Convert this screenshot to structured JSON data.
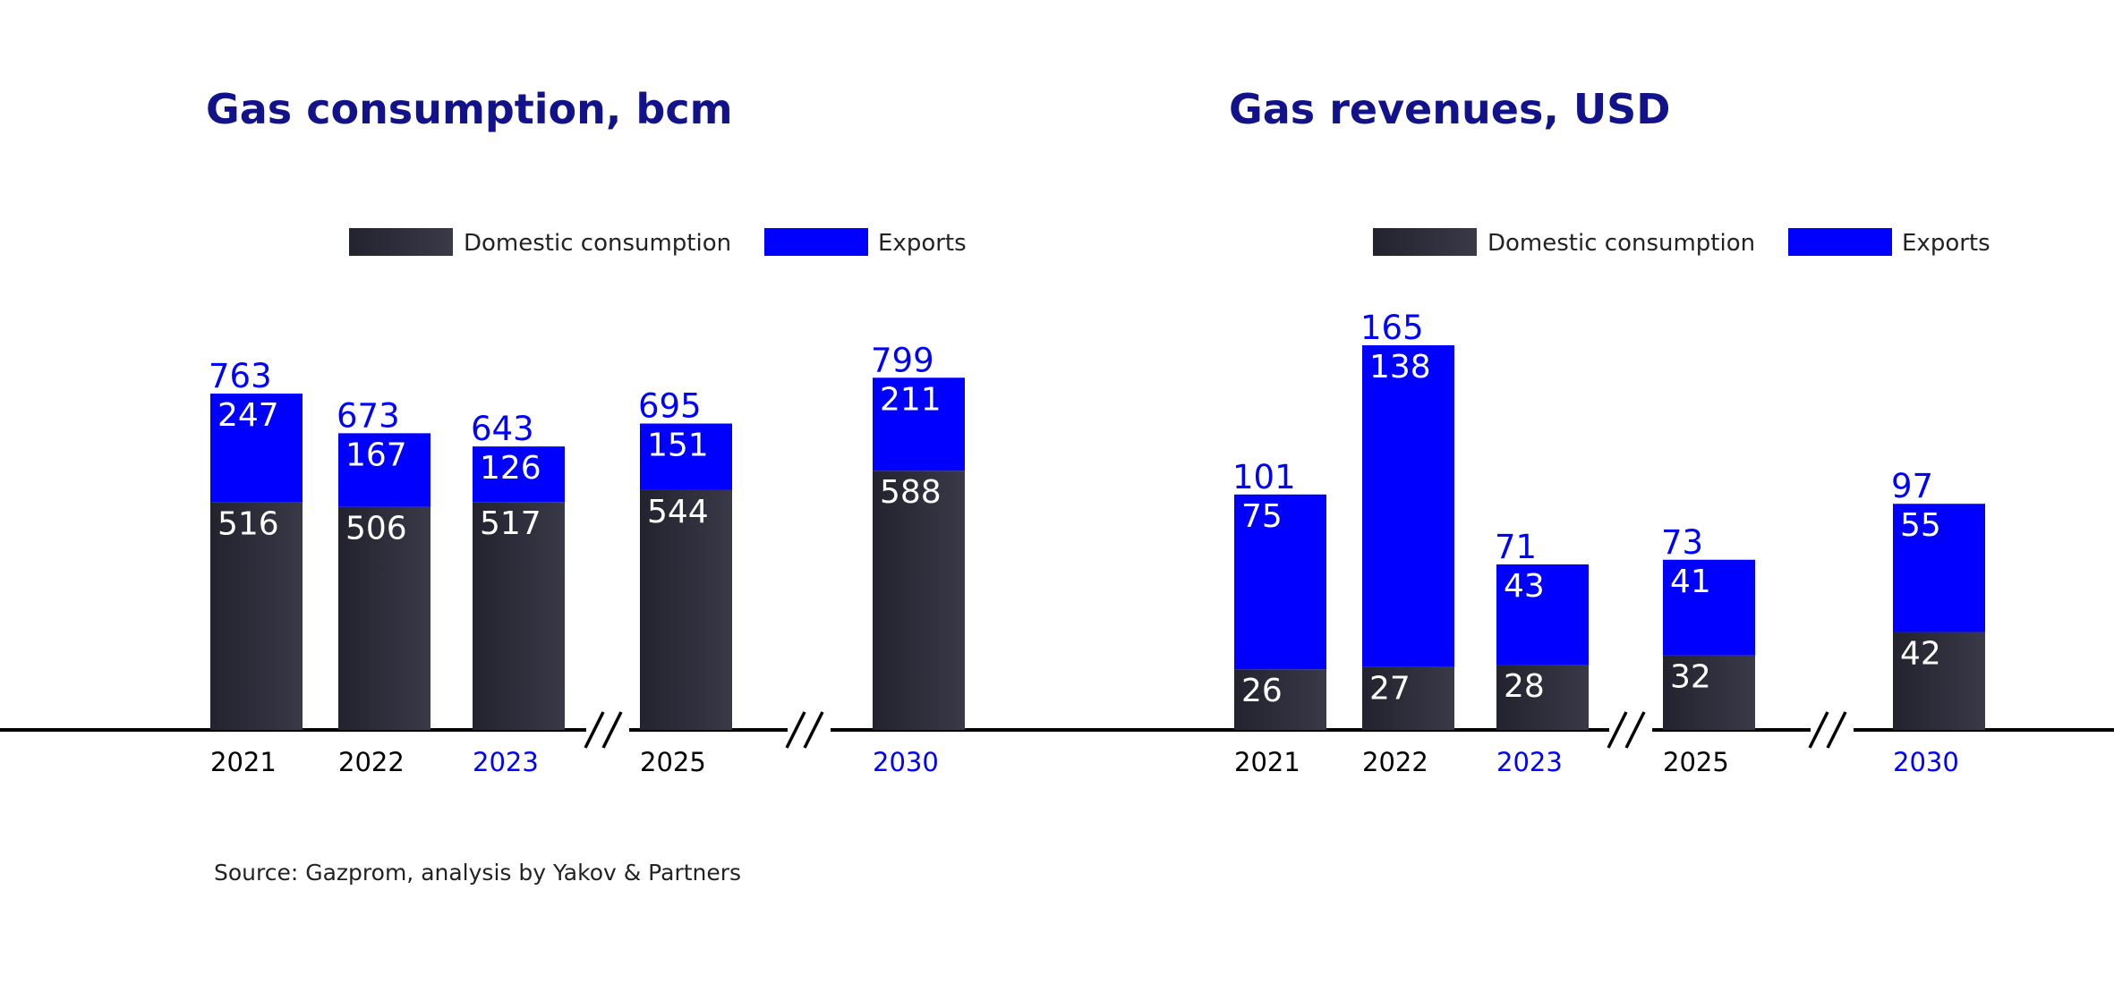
{
  "source": "Source: Gazprom, analysis by Yakov & Partners",
  "colors": {
    "title": "#12128a",
    "exports": "#0000ff",
    "domestic_dark": "#23222f",
    "domestic_light": "#3a3947",
    "highlight_year": "#0000ff",
    "year": "#000000",
    "axis": "#000000"
  },
  "chart_data": [
    {
      "type": "bar",
      "stacked": true,
      "title": "Gas consumption, bcm",
      "legend": [
        "Domestic consumption",
        "Exports"
      ],
      "legend_position": "top-center",
      "categories": [
        "2021",
        "2022",
        "2023",
        "2025",
        "2030"
      ],
      "highlighted_categories": [
        "2023",
        "2030"
      ],
      "axis_breaks_after": [
        "2023",
        "2025"
      ],
      "series": [
        {
          "name": "Domestic consumption",
          "values": [
            516,
            506,
            517,
            544,
            588
          ]
        },
        {
          "name": "Exports",
          "values": [
            247,
            167,
            126,
            151,
            211
          ]
        }
      ],
      "totals": [
        763,
        673,
        643,
        695,
        799
      ],
      "grid": false
    },
    {
      "type": "bar",
      "stacked": true,
      "title": "Gas revenues, USD",
      "legend": [
        "Domestic consumption",
        "Exports"
      ],
      "legend_position": "top-center",
      "categories": [
        "2021",
        "2022",
        "2023",
        "2025",
        "2030"
      ],
      "highlighted_categories": [
        "2023",
        "2030"
      ],
      "axis_breaks_after": [
        "2023",
        "2025"
      ],
      "series": [
        {
          "name": "Domestic consumption",
          "values": [
            26,
            27,
            28,
            32,
            42
          ]
        },
        {
          "name": "Exports",
          "values": [
            75,
            138,
            43,
            41,
            55
          ]
        }
      ],
      "totals": [
        101,
        165,
        71,
        73,
        97
      ],
      "grid": false
    }
  ]
}
